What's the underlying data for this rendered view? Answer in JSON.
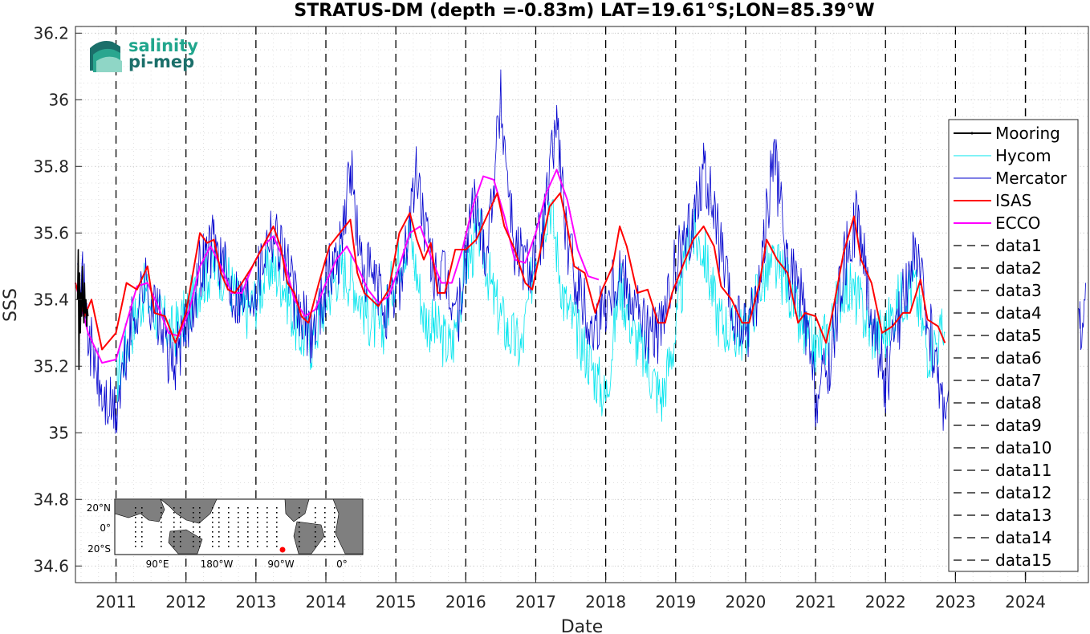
{
  "chart_data": {
    "type": "line",
    "title": "STRATUS-DM (depth =-0.83m) LAT=19.61°S;LON=85.39°W",
    "xlabel": "Date",
    "ylabel": "SSS",
    "xlim": [
      2010.42,
      2024.9
    ],
    "ylim": [
      34.55,
      36.22
    ],
    "grid": true,
    "legend_position": "right",
    "x_ticks": [
      "2011",
      "2012",
      "2013",
      "2014",
      "2015",
      "2016",
      "2017",
      "2018",
      "2019",
      "2020",
      "2021",
      "2022",
      "2023",
      "2024"
    ],
    "y_ticks": [
      "34.6",
      "34.8",
      "35",
      "35.2",
      "35.4",
      "35.6",
      "35.8",
      "36",
      "36.2"
    ],
    "series": [
      {
        "name": "Mooring",
        "color": "#000000",
        "x": [
          2010.45,
          2010.46,
          2010.47,
          2010.48,
          2010.49,
          2010.5,
          2010.51,
          2010.52,
          2010.53,
          2010.54,
          2010.55,
          2010.56,
          2010.57,
          2010.58,
          2010.59,
          2010.6
        ],
        "y": [
          35.4,
          35.55,
          35.19,
          35.48,
          35.3,
          35.42,
          35.35,
          35.5,
          35.38,
          35.33,
          35.45,
          35.36,
          35.4,
          35.32,
          35.37,
          35.35
        ]
      },
      {
        "name": "Hycom",
        "color": "#00e5ee",
        "x": [
          2011.0,
          2011.2,
          2011.4,
          2011.6,
          2011.8,
          2012.0,
          2012.2,
          2012.4,
          2012.6,
          2012.8,
          2013.0,
          2013.2,
          2013.4,
          2013.6,
          2013.8,
          2014.0,
          2014.2,
          2014.4,
          2014.6,
          2014.8,
          2015.0,
          2015.2,
          2015.4,
          2015.6,
          2015.8,
          2016.0,
          2016.2,
          2016.4,
          2016.6,
          2016.8,
          2017.0,
          2017.2,
          2017.4,
          2017.6,
          2017.8,
          2018.0,
          2018.2,
          2018.4,
          2018.6,
          2018.8,
          2019.0,
          2019.2,
          2019.4,
          2019.6,
          2019.8,
          2020.0,
          2020.2,
          2020.4,
          2020.6,
          2020.8,
          2021.0,
          2021.2,
          2021.4,
          2021.6,
          2021.8,
          2022.0,
          2022.2,
          2022.4,
          2022.6,
          2022.85
        ],
        "y": [
          35.15,
          35.3,
          35.42,
          35.35,
          35.3,
          35.35,
          35.45,
          35.5,
          35.47,
          35.35,
          35.4,
          35.5,
          35.45,
          35.3,
          35.27,
          35.4,
          35.5,
          35.45,
          35.35,
          35.3,
          35.5,
          35.6,
          35.35,
          35.3,
          35.25,
          35.5,
          35.6,
          35.4,
          35.3,
          35.25,
          35.55,
          35.7,
          35.4,
          35.3,
          35.2,
          35.1,
          35.45,
          35.3,
          35.2,
          35.1,
          35.3,
          35.6,
          35.55,
          35.35,
          35.3,
          35.3,
          35.45,
          35.5,
          35.45,
          35.3,
          35.25,
          35.3,
          35.45,
          35.4,
          35.3,
          35.3,
          35.4,
          35.45,
          35.25,
          35.3
        ]
      },
      {
        "name": "Mercator",
        "color": "#0000cd",
        "x": [
          2010.45,
          2010.6,
          2010.8,
          2011.0,
          2011.2,
          2011.4,
          2011.6,
          2011.8,
          2012.0,
          2012.2,
          2012.4,
          2012.6,
          2012.8,
          2013.0,
          2013.2,
          2013.4,
          2013.6,
          2013.8,
          2014.0,
          2014.2,
          2014.35,
          2014.5,
          2014.7,
          2014.9,
          2015.1,
          2015.3,
          2015.5,
          2015.7,
          2015.9,
          2016.1,
          2016.3,
          2016.5,
          2016.7,
          2016.9,
          2017.1,
          2017.3,
          2017.45,
          2017.6,
          2017.8,
          2018.0,
          2018.2,
          2018.4,
          2018.6,
          2018.8,
          2019.0,
          2019.2,
          2019.4,
          2019.6,
          2019.8,
          2020.0,
          2020.2,
          2020.4,
          2020.6,
          2020.8,
          2021.0,
          2021.2,
          2021.4,
          2021.6,
          2021.8,
          2022.0,
          2022.2,
          2022.4,
          2022.6,
          2022.8,
          2024.78,
          2024.86
        ],
        "y": [
          35.6,
          35.3,
          35.1,
          35.05,
          35.3,
          35.45,
          35.35,
          35.2,
          35.3,
          35.5,
          35.58,
          35.45,
          35.4,
          35.45,
          35.62,
          35.55,
          35.35,
          35.3,
          35.45,
          35.55,
          35.8,
          35.5,
          35.45,
          35.35,
          35.5,
          35.78,
          35.5,
          35.45,
          35.35,
          35.7,
          35.55,
          36.0,
          35.55,
          35.5,
          35.6,
          35.95,
          35.55,
          35.45,
          35.3,
          35.4,
          35.5,
          35.4,
          35.3,
          35.3,
          35.5,
          35.6,
          35.8,
          35.6,
          35.35,
          35.3,
          35.45,
          35.85,
          35.5,
          35.4,
          35.1,
          35.2,
          35.5,
          35.65,
          35.35,
          35.15,
          35.35,
          35.55,
          35.35,
          35.1,
          35.3,
          35.45
        ]
      },
      {
        "name": "ISAS",
        "color": "#ff0000",
        "x": [
          2010.42,
          2010.55,
          2010.65,
          2010.8,
          2011.0,
          2011.15,
          2011.3,
          2011.45,
          2011.55,
          2011.7,
          2011.85,
          2012.0,
          2012.1,
          2012.2,
          2012.3,
          2012.4,
          2012.5,
          2012.6,
          2012.7,
          2012.8,
          2012.95,
          2013.1,
          2013.25,
          2013.35,
          2013.45,
          2013.55,
          2013.65,
          2013.75,
          2013.9,
          2014.05,
          2014.2,
          2014.35,
          2014.45,
          2014.55,
          2014.65,
          2014.75,
          2014.9,
          2015.05,
          2015.2,
          2015.3,
          2015.4,
          2015.5,
          2015.6,
          2015.7,
          2015.85,
          2016.0,
          2016.15,
          2016.3,
          2016.45,
          2016.55,
          2016.7,
          2016.85,
          2016.95,
          2017.1,
          2017.2,
          2017.35,
          2017.45,
          2017.55,
          2017.7,
          2017.85,
          2017.95,
          2018.1,
          2018.2,
          2018.3,
          2018.45,
          2018.6,
          2018.75,
          2018.85,
          2018.95,
          2019.1,
          2019.25,
          2019.4,
          2019.55,
          2019.65,
          2019.8,
          2019.95,
          2020.05,
          2020.2,
          2020.3,
          2020.45,
          2020.6,
          2020.75,
          2020.85,
          2021.0,
          2021.15,
          2021.25,
          2021.4,
          2021.55,
          2021.65,
          2021.8,
          2021.95,
          2022.1,
          2022.25,
          2022.35,
          2022.5,
          2022.6,
          2022.75,
          2022.85
        ],
        "y": [
          35.45,
          35.35,
          35.4,
          35.25,
          35.3,
          35.45,
          35.43,
          35.5,
          35.36,
          35.35,
          35.27,
          35.36,
          35.48,
          35.6,
          35.57,
          35.58,
          35.48,
          35.43,
          35.42,
          35.45,
          35.5,
          35.56,
          35.62,
          35.56,
          35.45,
          35.42,
          35.35,
          35.33,
          35.45,
          35.56,
          35.6,
          35.64,
          35.48,
          35.42,
          35.4,
          35.38,
          35.43,
          35.6,
          35.66,
          35.58,
          35.52,
          35.57,
          35.42,
          35.42,
          35.55,
          35.55,
          35.58,
          35.65,
          35.72,
          35.62,
          35.55,
          35.45,
          35.43,
          35.58,
          35.68,
          35.72,
          35.62,
          35.5,
          35.48,
          35.36,
          35.43,
          35.5,
          35.62,
          35.56,
          35.42,
          35.43,
          35.33,
          35.33,
          35.42,
          35.5,
          35.58,
          35.62,
          35.56,
          35.44,
          35.4,
          35.33,
          35.33,
          35.45,
          35.58,
          35.52,
          35.48,
          35.33,
          35.36,
          35.35,
          35.27,
          35.37,
          35.54,
          35.65,
          35.52,
          35.45,
          35.3,
          35.32,
          35.36,
          35.36,
          35.46,
          35.34,
          35.32,
          35.27
        ]
      },
      {
        "name": "ECCO",
        "color": "#ff00ff",
        "x": [
          2010.42,
          2010.6,
          2010.8,
          2011.0,
          2011.15,
          2011.3,
          2011.45,
          2011.6,
          2011.75,
          2011.9,
          2012.05,
          2012.2,
          2012.35,
          2012.5,
          2012.65,
          2012.8,
          2012.95,
          2013.1,
          2013.25,
          2013.4,
          2013.55,
          2013.7,
          2013.85,
          2014.0,
          2014.15,
          2014.3,
          2014.45,
          2014.6,
          2014.75,
          2014.9,
          2015.05,
          2015.2,
          2015.35,
          2015.5,
          2015.65,
          2015.8,
          2015.95,
          2016.1,
          2016.25,
          2016.4,
          2016.55,
          2016.7,
          2016.85,
          2017.0,
          2017.15,
          2017.3,
          2017.45,
          2017.6,
          2017.75,
          2017.9
        ],
        "y": [
          35.45,
          35.3,
          35.21,
          35.22,
          35.33,
          35.44,
          35.45,
          35.38,
          35.3,
          35.29,
          35.37,
          35.5,
          35.56,
          35.5,
          35.42,
          35.42,
          35.5,
          35.56,
          35.59,
          35.52,
          35.4,
          35.35,
          35.37,
          35.45,
          35.52,
          35.56,
          35.5,
          35.43,
          35.39,
          35.41,
          35.5,
          35.6,
          35.62,
          35.53,
          35.45,
          35.45,
          35.55,
          35.68,
          35.77,
          35.76,
          35.65,
          35.52,
          35.51,
          35.6,
          35.72,
          35.79,
          35.7,
          35.55,
          35.47,
          35.46
        ]
      },
      {
        "name": "data1",
        "x_at": 2011.0,
        "color": "#000000"
      },
      {
        "name": "data2",
        "x_at": 2012.0,
        "color": "#000000"
      },
      {
        "name": "data3",
        "x_at": 2013.0,
        "color": "#000000"
      },
      {
        "name": "data4",
        "x_at": 2014.0,
        "color": "#000000"
      },
      {
        "name": "data5",
        "x_at": 2015.0,
        "color": "#000000"
      },
      {
        "name": "data6",
        "x_at": 2016.0,
        "color": "#000000"
      },
      {
        "name": "data7",
        "x_at": 2017.0,
        "color": "#000000"
      },
      {
        "name": "data8",
        "x_at": 2018.0,
        "color": "#000000"
      },
      {
        "name": "data9",
        "x_at": 2019.0,
        "color": "#000000"
      },
      {
        "name": "data10",
        "x_at": 2020.0,
        "color": "#000000"
      },
      {
        "name": "data11",
        "x_at": 2021.0,
        "color": "#000000"
      },
      {
        "name": "data12",
        "x_at": 2022.0,
        "color": "#000000"
      },
      {
        "name": "data13",
        "x_at": 2023.0,
        "color": "#000000"
      },
      {
        "name": "data14",
        "x_at": 2024.0,
        "color": "#000000"
      },
      {
        "name": "data15",
        "x_at": 2024.0,
        "color": "#000000"
      }
    ]
  },
  "logo": {
    "line1": "salinity",
    "line2": "pi-mep",
    "color1": "#21a68d",
    "color2": "#1b6f6a"
  },
  "inset_map": {
    "lat_ticks": [
      "20°N",
      "0°",
      "20°S"
    ],
    "lon_ticks": [
      "90°E",
      "180°W",
      "90°W",
      "0°"
    ],
    "marker_color": "#ff0000"
  }
}
